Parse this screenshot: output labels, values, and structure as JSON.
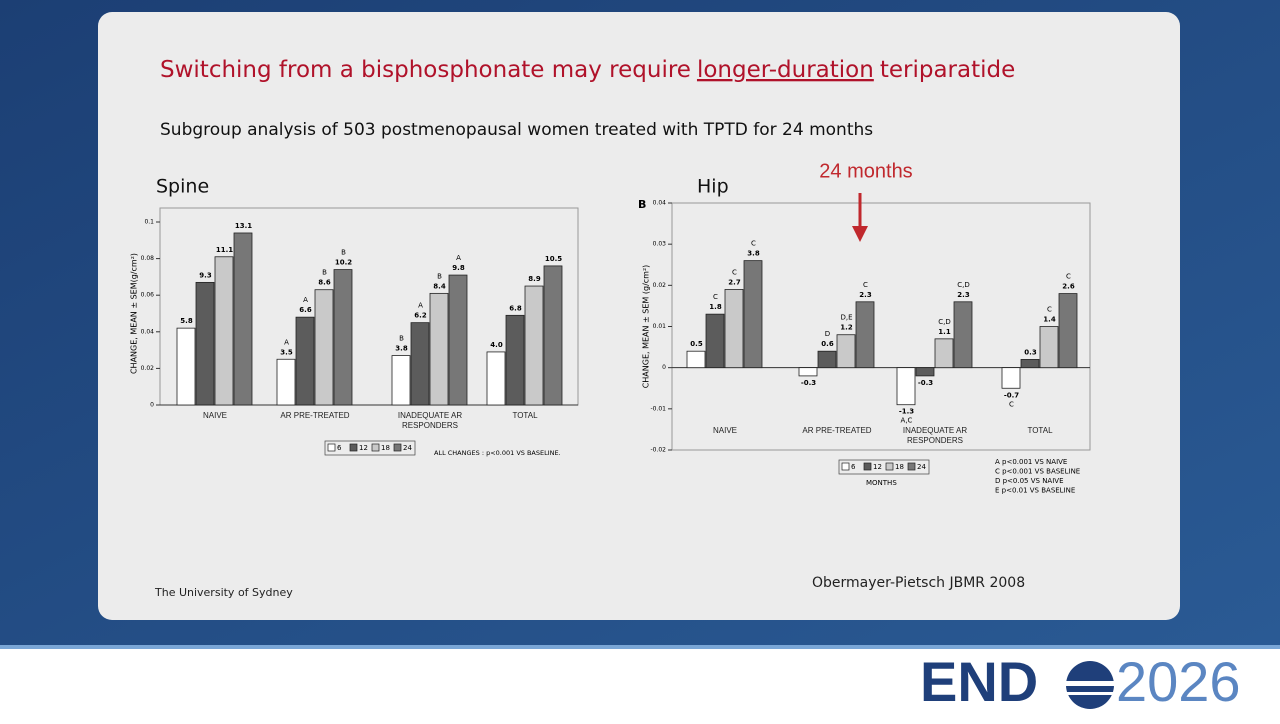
{
  "slide": {
    "title_parts": [
      "Switching from a bisphosphonate may require",
      "longer-duration",
      "teriparatide"
    ],
    "subtitle": "Subgroup analysis of 503 postmenopausal women treated with TPTD for 24 months",
    "footer": "The University of Sydney",
    "citation": "Obermayer-Pietsch JBMR 2008",
    "logo_left": "END",
    "logo_right": "2026"
  },
  "chart_data": [
    {
      "type": "bar",
      "heading": "Spine",
      "ylabel": "CHANGE, MEAN ± SEM(g/cm²)",
      "categories": [
        "NAIVE",
        "AR PRE-TREATED",
        "INADEQUATE AR RESPONDERS",
        "TOTAL"
      ],
      "series": [
        {
          "name": "6",
          "color": "#ffffff",
          "values": [
            0.042,
            0.025,
            0.027,
            0.029
          ],
          "percent_labels": [
            "5.8",
            "3.5",
            "3.8",
            "4.0"
          ],
          "sig_labels": [
            null,
            "A",
            "B",
            null
          ]
        },
        {
          "name": "12",
          "color": "#5c5c5c",
          "values": [
            0.067,
            0.048,
            0.045,
            0.049
          ],
          "percent_labels": [
            "9.3",
            "6.6",
            "6.2",
            "6.8"
          ],
          "sig_labels": [
            null,
            "A",
            "A",
            null
          ]
        },
        {
          "name": "18",
          "color": "#c9c9c9",
          "values": [
            0.081,
            0.063,
            0.061,
            0.065
          ],
          "percent_labels": [
            "11.1",
            "8.6",
            "8.4",
            "8.9"
          ],
          "sig_labels": [
            null,
            "B",
            "B",
            null
          ]
        },
        {
          "name": "24",
          "color": "#777777",
          "values": [
            0.094,
            0.074,
            0.071,
            0.076
          ],
          "percent_labels": [
            "13.1",
            "10.2",
            "9.8",
            "10.5"
          ],
          "sig_labels": [
            null,
            "B",
            "A",
            null
          ]
        }
      ],
      "ylim": [
        0,
        0.1
      ],
      "yticks": [
        0,
        0.02,
        0.04,
        0.06,
        0.08,
        0.1
      ],
      "note": "ALL CHANGES : p<0.001 VS BASELINE."
    },
    {
      "type": "bar",
      "heading": "Hip",
      "panel": "B",
      "ylabel": "CHANGE, MEAN ± SEM (g/cm²)",
      "categories": [
        "NAIVE",
        "AR PRE-TREATED",
        "INADEQUATE AR RESPONDERS",
        "TOTAL"
      ],
      "series": [
        {
          "name": "6",
          "color": "#ffffff",
          "values": [
            0.004,
            -0.002,
            -0.009,
            -0.005
          ],
          "percent_labels": [
            "0.5",
            "-0.3",
            "-1.3",
            "-0.7"
          ],
          "sig_labels": [
            null,
            null,
            "A,C",
            "C"
          ]
        },
        {
          "name": "12",
          "color": "#5c5c5c",
          "values": [
            0.013,
            0.004,
            -0.002,
            0.002
          ],
          "percent_labels": [
            "1.8",
            "0.6",
            "-0.3",
            "0.3"
          ],
          "sig_labels": [
            "C",
            "D",
            null,
            null
          ]
        },
        {
          "name": "18",
          "color": "#c9c9c9",
          "values": [
            0.019,
            0.008,
            0.007,
            0.01
          ],
          "percent_labels": [
            "2.7",
            "1.2",
            "1.1",
            "1.4"
          ],
          "sig_labels": [
            "C",
            "D,E",
            "C,D",
            "C"
          ]
        },
        {
          "name": "24",
          "color": "#777777",
          "values": [
            0.026,
            0.016,
            0.016,
            0.018
          ],
          "percent_labels": [
            "3.8",
            "2.3",
            "2.3",
            "2.6"
          ],
          "sig_labels": [
            "C",
            "C",
            "C,D",
            "C"
          ]
        }
      ],
      "ylim": [
        -0.02,
        0.04
      ],
      "yticks": [
        -0.02,
        -0.01,
        0,
        0.01,
        0.02,
        0.03,
        0.04
      ],
      "legend_title": "MONTHS",
      "annotation": "24 months",
      "footnotes": [
        "A  p<0.001 VS NAIVE",
        "C  p<0.001 VS BASELINE",
        "D  p<0.05  VS NAIVE",
        "E  p<0.01  VS BASELINE"
      ]
    }
  ]
}
